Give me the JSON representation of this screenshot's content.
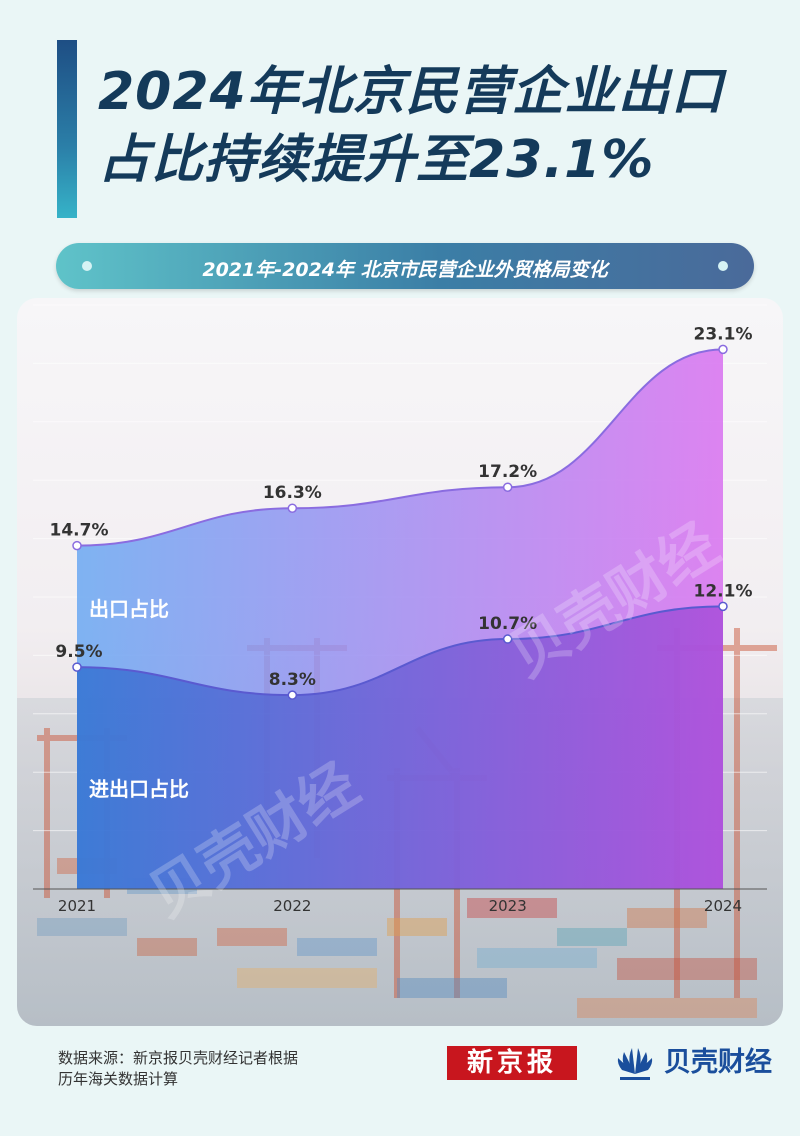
{
  "header": {
    "title_line1": "2024年北京民营企业出口",
    "title_line2": "占比持续提升至23.1%",
    "subtitle": "2021年-2024年 北京市民营企业外贸格局变化"
  },
  "chart_data": {
    "type": "area",
    "title": "2021年-2024年 北京市民营企业外贸格局变化",
    "categories": [
      "2021",
      "2022",
      "2023",
      "2024"
    ],
    "series": [
      {
        "name": "出口占比",
        "values": [
          14.7,
          16.3,
          17.2,
          23.1
        ],
        "labels": [
          "14.7%",
          "16.3%",
          "17.2%",
          "23.1%"
        ],
        "color_start": "#6aa8f2",
        "color_end": "#d870f0"
      },
      {
        "name": "进出口占比",
        "values": [
          9.5,
          8.3,
          10.7,
          12.1
        ],
        "labels": [
          "9.5%",
          "8.3%",
          "10.7%",
          "12.1%"
        ],
        "color_start": "#2f6fd0",
        "color_end": "#a54ad8"
      }
    ],
    "ylim": [
      0,
      25
    ],
    "grid": true,
    "legend_position": "inline"
  },
  "watermark": {
    "text": "贝壳财经"
  },
  "footer": {
    "source_line1": "数据来源：新京报贝壳财经记者根据",
    "source_line2": "历年海关数据计算",
    "logo_xinjingbao": "新京报",
    "logo_beike": "贝壳财经"
  }
}
